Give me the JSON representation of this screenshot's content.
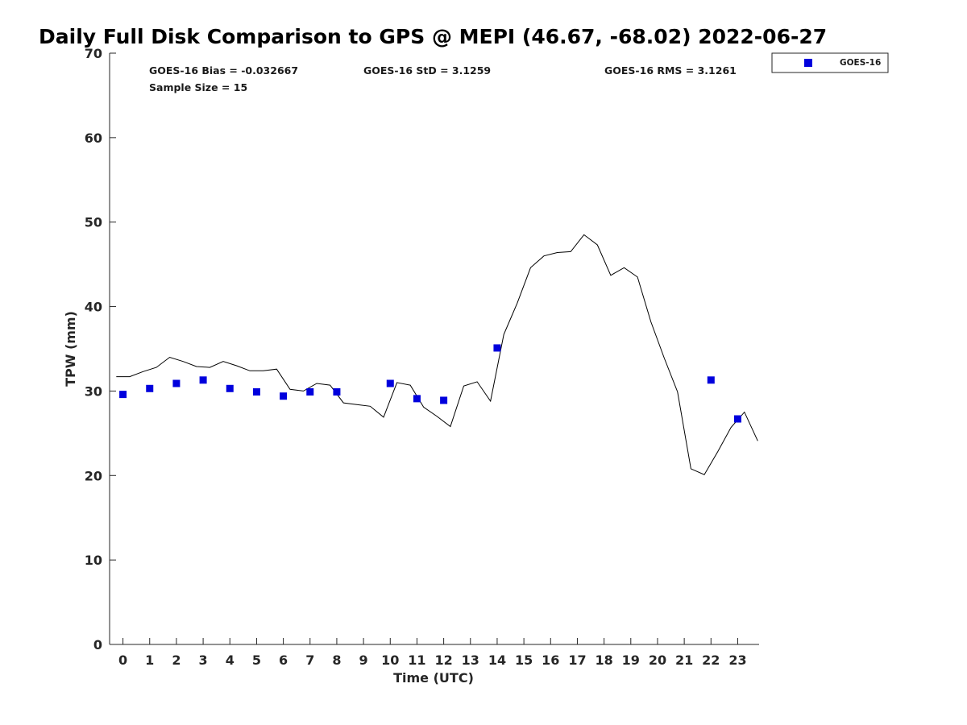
{
  "chart_data": {
    "type": "scatter",
    "title": "Daily Full Disk Comparison to GPS @ MEPI (46.67, -68.02) 2022-06-27",
    "xlabel": "Time (UTC)",
    "ylabel": "TPW (mm)",
    "xlim": [
      -0.5,
      23.8
    ],
    "ylim": [
      0,
      70
    ],
    "x_ticks": [
      0,
      1,
      2,
      3,
      4,
      5,
      6,
      7,
      8,
      9,
      10,
      11,
      12,
      13,
      14,
      15,
      16,
      17,
      18,
      19,
      20,
      21,
      22,
      23
    ],
    "x_tick_labels": [
      "0",
      "1",
      "2",
      "3",
      "4",
      "5",
      "6",
      "7",
      "8",
      "9",
      "10",
      "11",
      "12",
      "13",
      "14",
      "15",
      "16",
      "17",
      "18",
      "19",
      "20",
      "21",
      "22",
      "23"
    ],
    "y_ticks": [
      0,
      10,
      20,
      30,
      40,
      50,
      60,
      70
    ],
    "y_tick_labels": [
      "0",
      "10",
      "20",
      "30",
      "40",
      "50",
      "60",
      "70"
    ],
    "grid": false,
    "legend_position": "top-right",
    "stats": {
      "bias": "GOES-16 Bias = -0.032667",
      "std": "GOES-16 StD = 3.1259",
      "rms": "GOES-16 RMS = 3.1261",
      "sample_size": "Sample Size = 15"
    },
    "series": [
      {
        "name": "GOES-16",
        "kind": "scatter",
        "color": "#0000dd",
        "marker": "square",
        "x": [
          0,
          1,
          2,
          3,
          4,
          5,
          6,
          7,
          8,
          10,
          11,
          12,
          14,
          22,
          23
        ],
        "y": [
          29.6,
          30.3,
          30.9,
          31.3,
          30.3,
          29.9,
          29.4,
          29.9,
          29.9,
          30.9,
          29.1,
          28.9,
          35.1,
          31.3,
          26.7
        ]
      },
      {
        "kind": "line",
        "color": "#000000",
        "x": [
          -0.25,
          0.25,
          0.75,
          1.25,
          1.75,
          2.25,
          2.75,
          3.25,
          3.75,
          4.25,
          4.75,
          5.25,
          5.75,
          6.25,
          6.75,
          7.25,
          7.75,
          8.25,
          8.75,
          9.25,
          9.75,
          10.25,
          10.75,
          11.25,
          11.75,
          12.25,
          12.75,
          13.25,
          13.75,
          14.25,
          14.75,
          15.25,
          15.75,
          16.25,
          16.75,
          17.25,
          17.75,
          18.25,
          18.75,
          19.25,
          19.75,
          20.25,
          20.75,
          21.25,
          21.75,
          22.25,
          22.75,
          23.25,
          23.75
        ],
        "y": [
          31.7,
          31.7,
          32.3,
          32.8,
          34.0,
          33.5,
          32.9,
          32.8,
          33.5,
          33.0,
          32.4,
          32.4,
          32.6,
          30.2,
          30.0,
          30.9,
          30.7,
          28.6,
          28.4,
          28.2,
          26.9,
          31.0,
          30.7,
          28.1,
          27.0,
          25.8,
          30.6,
          31.1,
          28.8,
          36.7,
          40.4,
          44.6,
          46.0,
          46.4,
          46.5,
          48.5,
          47.3,
          43.7,
          44.6,
          43.5,
          38.2,
          33.9,
          29.9,
          20.8,
          20.1,
          22.8,
          25.7,
          27.5,
          24.1
        ]
      }
    ]
  }
}
